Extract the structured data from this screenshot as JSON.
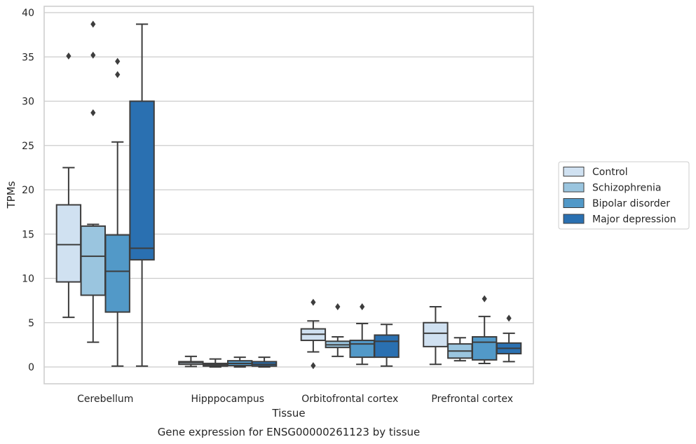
{
  "chart_data": {
    "type": "box",
    "xlabel": "Tissue",
    "ylabel": "TPMs",
    "caption": "Gene expression for ENSG00000261123 by tissue",
    "ylim": [
      -1.8,
      40.6
    ],
    "yticks": [
      "0",
      "5",
      "10",
      "15",
      "20",
      "25",
      "30",
      "35",
      "40"
    ],
    "grid": "horizontal",
    "legend_position": "right",
    "categories": [
      "Cerebellum",
      "Hipppocampus",
      "Orbitofrontal cortex",
      "Prefrontal cortex"
    ],
    "series": [
      {
        "name": "Control",
        "color": "#d0e1f1",
        "boxes": [
          {
            "whislo": 5.6,
            "q1": 9.6,
            "med": 13.8,
            "q3": 18.3,
            "whishi": 22.5,
            "fliers": [
              35.1
            ]
          },
          {
            "whislo": 0.05,
            "q1": 0.3,
            "med": 0.5,
            "q3": 0.6,
            "whishi": 1.2,
            "fliers": []
          },
          {
            "whislo": 1.7,
            "q1": 3.0,
            "med": 3.7,
            "q3": 4.3,
            "whishi": 5.2,
            "fliers": [
              7.3,
              0.15
            ]
          },
          {
            "whislo": 0.3,
            "q1": 2.3,
            "med": 3.8,
            "q3": 5.0,
            "whishi": 6.8,
            "fliers": []
          }
        ]
      },
      {
        "name": "Schizophrenia",
        "color": "#9ac5df",
        "boxes": [
          {
            "whislo": 2.8,
            "q1": 8.1,
            "med": 12.5,
            "q3": 15.9,
            "whishi": 16.1,
            "fliers": [
              38.7,
              35.2,
              28.7
            ]
          },
          {
            "whislo": 0.0,
            "q1": 0.1,
            "med": 0.25,
            "q3": 0.4,
            "whishi": 0.9,
            "fliers": []
          },
          {
            "whislo": 1.2,
            "q1": 2.2,
            "med": 2.5,
            "q3": 2.9,
            "whishi": 3.4,
            "fliers": [
              6.8
            ]
          },
          {
            "whislo": 0.7,
            "q1": 1.0,
            "med": 1.8,
            "q3": 2.6,
            "whishi": 3.3,
            "fliers": []
          }
        ]
      },
      {
        "name": "Bipolar disorder",
        "color": "#5299c8",
        "boxes": [
          {
            "whislo": 0.1,
            "q1": 6.2,
            "med": 10.8,
            "q3": 14.9,
            "whishi": 25.4,
            "fliers": [
              34.5,
              33.0
            ]
          },
          {
            "whislo": 0.0,
            "q1": 0.15,
            "med": 0.4,
            "q3": 0.7,
            "whishi": 1.1,
            "fliers": []
          },
          {
            "whislo": 0.3,
            "q1": 1.1,
            "med": 2.6,
            "q3": 3.0,
            "whishi": 4.9,
            "fliers": [
              6.8
            ]
          },
          {
            "whislo": 0.4,
            "q1": 0.8,
            "med": 2.8,
            "q3": 3.4,
            "whishi": 5.7,
            "fliers": [
              7.7
            ]
          }
        ]
      },
      {
        "name": "Major depression",
        "color": "#2a70b1",
        "boxes": [
          {
            "whislo": 0.1,
            "q1": 12.1,
            "med": 13.4,
            "q3": 30.0,
            "whishi": 38.7,
            "fliers": []
          },
          {
            "whislo": 0.0,
            "q1": 0.1,
            "med": 0.3,
            "q3": 0.6,
            "whishi": 1.1,
            "fliers": []
          },
          {
            "whislo": 0.1,
            "q1": 1.1,
            "med": 2.9,
            "q3": 3.6,
            "whishi": 4.8,
            "fliers": []
          },
          {
            "whislo": 0.6,
            "q1": 1.5,
            "med": 2.1,
            "q3": 2.7,
            "whishi": 3.8,
            "fliers": [
              5.5
            ]
          }
        ]
      }
    ]
  }
}
